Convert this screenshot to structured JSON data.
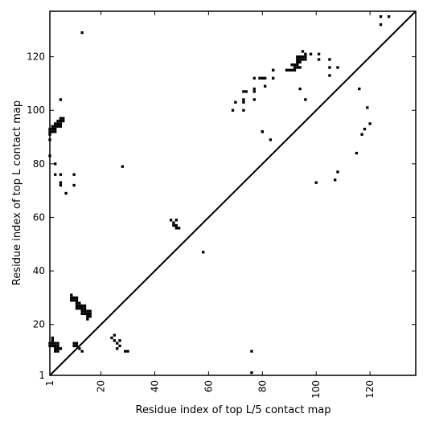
{
  "chart_data": {
    "type": "scatter",
    "title": "",
    "xlabel": "Residue index of top L/5 contact map",
    "ylabel": "Residue index of top L contact map",
    "xlim": [
      1,
      137
    ],
    "ylim": [
      1,
      137
    ],
    "xticks": [
      1,
      20,
      40,
      60,
      80,
      100,
      120
    ],
    "yticks": [
      1,
      20,
      40,
      60,
      80,
      100,
      120
    ],
    "x_tick_labels": [
      "1",
      "20",
      "40",
      "60",
      "80",
      "100",
      "120"
    ],
    "y_tick_labels": [
      "1",
      "20",
      "40",
      "60",
      "80",
      "100",
      "120"
    ],
    "diagonal": true,
    "grid": false,
    "marker": "square",
    "color": "#000000",
    "series": [
      {
        "values": [
          [
            1,
            91
          ],
          [
            1,
            92
          ],
          [
            1,
            93
          ],
          [
            2,
            92
          ],
          [
            2,
            93
          ],
          [
            2,
            94
          ],
          [
            3,
            92
          ],
          [
            3,
            93
          ],
          [
            3,
            94
          ],
          [
            3,
            95
          ],
          [
            4,
            94
          ],
          [
            4,
            95
          ],
          [
            4,
            96
          ],
          [
            5,
            94
          ],
          [
            5,
            95
          ],
          [
            5,
            96
          ],
          [
            5,
            97
          ],
          [
            6,
            96
          ],
          [
            6,
            97
          ],
          [
            1,
            89
          ],
          [
            1,
            83
          ],
          [
            3,
            80
          ],
          [
            3,
            76
          ],
          [
            5,
            76
          ],
          [
            5,
            73
          ],
          [
            5,
            72
          ],
          [
            5,
            104
          ],
          [
            7,
            69
          ],
          [
            10,
            76
          ],
          [
            10,
            72
          ],
          [
            13,
            129
          ],
          [
            28,
            79
          ],
          [
            58,
            47
          ],
          [
            46,
            59
          ],
          [
            47,
            58
          ],
          [
            47,
            57
          ],
          [
            48,
            59
          ],
          [
            48,
            57
          ],
          [
            48,
            56
          ],
          [
            49,
            56
          ],
          [
            69,
            100
          ],
          [
            70,
            103
          ],
          [
            73,
            100
          ],
          [
            73,
            103
          ],
          [
            73,
            104
          ],
          [
            73,
            107
          ],
          [
            74,
            107
          ],
          [
            77,
            104
          ],
          [
            77,
            107
          ],
          [
            77,
            108
          ],
          [
            77,
            112
          ],
          [
            79,
            112
          ],
          [
            80,
            112
          ],
          [
            80,
            92
          ],
          [
            81,
            109
          ],
          [
            81,
            112
          ],
          [
            83,
            89
          ],
          [
            84,
            112
          ],
          [
            84,
            115
          ],
          [
            89,
            115
          ],
          [
            90,
            115
          ],
          [
            91,
            115
          ],
          [
            91,
            117
          ],
          [
            92,
            115
          ],
          [
            92,
            116
          ],
          [
            92,
            117
          ],
          [
            93,
            116
          ],
          [
            93,
            117
          ],
          [
            93,
            118
          ],
          [
            93,
            119
          ],
          [
            93,
            120
          ],
          [
            94,
            116
          ],
          [
            94,
            118
          ],
          [
            94,
            119
          ],
          [
            94,
            120
          ],
          [
            95,
            119
          ],
          [
            95,
            120
          ],
          [
            95,
            122
          ],
          [
            96,
            119
          ],
          [
            96,
            120
          ],
          [
            96,
            121
          ],
          [
            94,
            108
          ],
          [
            96,
            104
          ],
          [
            98,
            121
          ],
          [
            101,
            119
          ],
          [
            101,
            121
          ],
          [
            105,
            119
          ],
          [
            105,
            116
          ],
          [
            105,
            113
          ],
          [
            108,
            116
          ],
          [
            124,
            135
          ],
          [
            127,
            135
          ],
          [
            124,
            132
          ]
        ]
      },
      {
        "values": [
          [
            1,
            12
          ],
          [
            1,
            13
          ],
          [
            2,
            12
          ],
          [
            2,
            13
          ],
          [
            2,
            14
          ],
          [
            2,
            15
          ],
          [
            3,
            10
          ],
          [
            3,
            11
          ],
          [
            3,
            12
          ],
          [
            3,
            13
          ],
          [
            4,
            10
          ],
          [
            4,
            11
          ],
          [
            4,
            12
          ],
          [
            4,
            13
          ],
          [
            5,
            11
          ],
          [
            10,
            12
          ],
          [
            10,
            13
          ],
          [
            11,
            12
          ],
          [
            11,
            13
          ],
          [
            12,
            11
          ],
          [
            13,
            10
          ],
          [
            9,
            29
          ],
          [
            9,
            30
          ],
          [
            9,
            31
          ],
          [
            10,
            29
          ],
          [
            10,
            30
          ],
          [
            11,
            26
          ],
          [
            11,
            27
          ],
          [
            11,
            28
          ],
          [
            11,
            29
          ],
          [
            11,
            30
          ],
          [
            12,
            26
          ],
          [
            12,
            27
          ],
          [
            12,
            28
          ],
          [
            13,
            24
          ],
          [
            13,
            25
          ],
          [
            13,
            26
          ],
          [
            13,
            27
          ],
          [
            14,
            24
          ],
          [
            14,
            25
          ],
          [
            14,
            26
          ],
          [
            14,
            27
          ],
          [
            15,
            22
          ],
          [
            15,
            23
          ],
          [
            15,
            24
          ],
          [
            15,
            25
          ],
          [
            16,
            23
          ],
          [
            16,
            24
          ],
          [
            16,
            25
          ],
          [
            24,
            15
          ],
          [
            25,
            14
          ],
          [
            25,
            16
          ],
          [
            26,
            11
          ],
          [
            26,
            13
          ],
          [
            27,
            12
          ],
          [
            27,
            14
          ],
          [
            29,
            10
          ],
          [
            30,
            10
          ],
          [
            76,
            10
          ],
          [
            76,
            2
          ],
          [
            80,
            92
          ],
          [
            100,
            73
          ],
          [
            107,
            74
          ],
          [
            108,
            77
          ],
          [
            115,
            84
          ],
          [
            117,
            91
          ],
          [
            118,
            93
          ],
          [
            119,
            101
          ],
          [
            120,
            95
          ],
          [
            116,
            108
          ]
        ]
      }
    ]
  }
}
